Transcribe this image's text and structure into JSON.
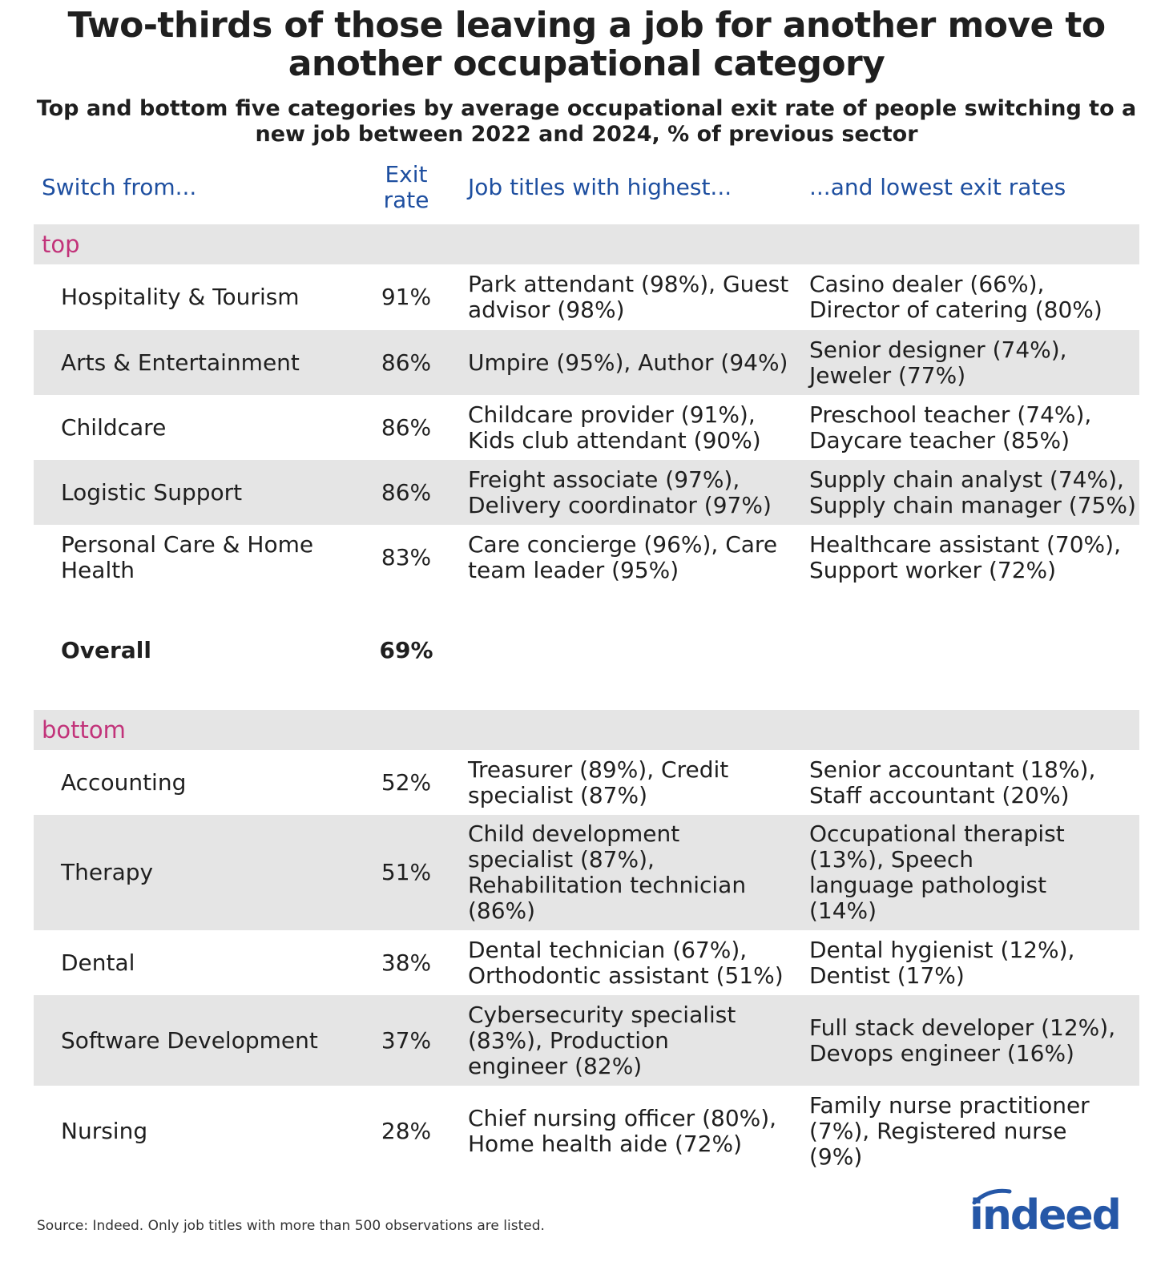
{
  "title": "Two-thirds of those leaving a job for another move to another occupational category",
  "subtitle": "Top and bottom five categories by average occupational exit rate of people switching to a new job between 2022 and 2024, % of previous sector",
  "columns": {
    "switch_from": "Switch from...",
    "exit_rate": "Exit rate",
    "highest": "Job titles with highest...",
    "lowest": "...and lowest exit rates"
  },
  "sections": {
    "top": {
      "label": "top",
      "rows": [
        {
          "name": "Hospitality & Tourism",
          "rate": "91%",
          "high": "Park attendant (98%), Guest advisor (98%)",
          "low": "Casino dealer (66%), Director of catering (80%)"
        },
        {
          "name": "Arts & Entertainment",
          "rate": "86%",
          "high": "Umpire (95%), Author (94%)",
          "low": "Senior designer (74%), Jeweler (77%)"
        },
        {
          "name": "Childcare",
          "rate": "86%",
          "high": "Childcare provider (91%), Kids club attendant (90%)",
          "low": "Preschool teacher (74%), Daycare teacher (85%)"
        },
        {
          "name": "Logistic Support",
          "rate": "86%",
          "high": "Freight associate (97%), Delivery coordinator (97%)",
          "low": "Supply chain analyst (74%), Supply chain manager (75%)"
        },
        {
          "name": "Personal Care & Home Health",
          "rate": "83%",
          "high": "Care concierge (96%), Care team leader (95%)",
          "low": "Healthcare assistant (70%), Support worker (72%)"
        }
      ]
    },
    "overall": {
      "name": "Overall",
      "rate": "69%"
    },
    "bottom": {
      "label": "bottom",
      "rows": [
        {
          "name": "Accounting",
          "rate": "52%",
          "high": "Treasurer (89%), Credit specialist (87%)",
          "low": "Senior accountant (18%), Staff accountant (20%)"
        },
        {
          "name": "Therapy",
          "rate": "51%",
          "high": "Child development specialist (87%), Rehabilitation technician (86%)",
          "low": "Occupational therapist (13%), Speech language pathologist (14%)"
        },
        {
          "name": "Dental",
          "rate": "38%",
          "high": "Dental technician (67%), Orthodontic assistant (51%)",
          "low": "Dental hygienist (12%), Dentist (17%)"
        },
        {
          "name": "Software Development",
          "rate": "37%",
          "high": "Cybersecurity specialist (83%), Production engineer (82%)",
          "low": "Full stack developer (12%), Devops engineer (16%)"
        },
        {
          "name": "Nursing",
          "rate": "28%",
          "high": "Chief nursing officer (80%), Home health aide (72%)",
          "low": "Family nurse practitioner (7%), Registered nurse (9%)"
        }
      ]
    }
  },
  "footnote": "Source: Indeed. Only job titles with more than 500 observations are listed.",
  "logo": {
    "text": "indeed",
    "color": "#2557a7"
  },
  "colors": {
    "header_text": "#1e4fa0",
    "section_label": "#c2337a",
    "band": "#e5e5e5"
  }
}
